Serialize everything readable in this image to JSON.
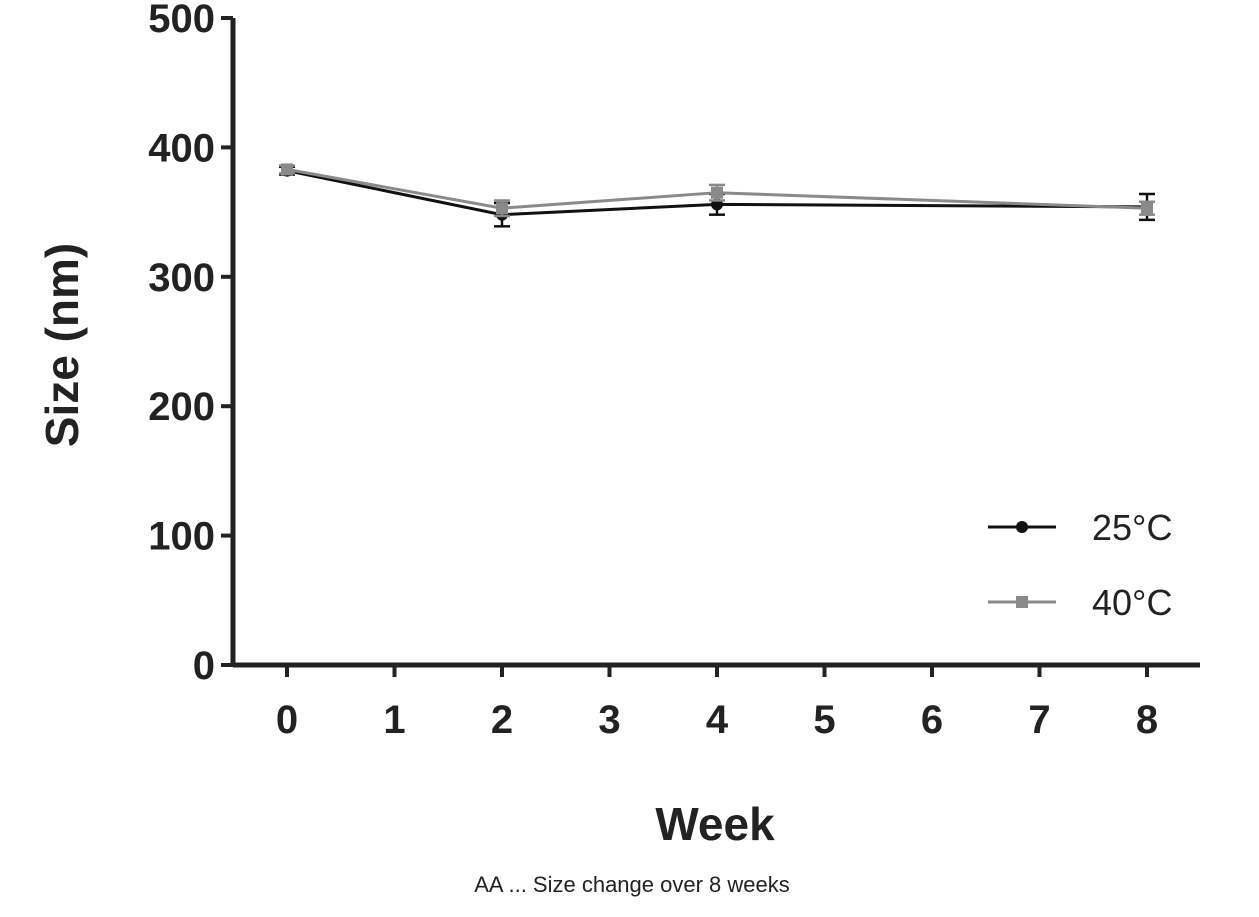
{
  "chart_data": {
    "type": "line",
    "title": "",
    "xlabel": "Week",
    "ylabel": "Size (nm)",
    "xlim": [
      0,
      8
    ],
    "ylim": [
      0,
      500
    ],
    "x_ticks": [
      "0",
      "1",
      "2",
      "3",
      "4",
      "5",
      "6",
      "7",
      "8"
    ],
    "y_ticks": [
      "0",
      "100",
      "200",
      "300",
      "400",
      "500"
    ],
    "grid": false,
    "legend_position": "bottom-right",
    "series": [
      {
        "name": "25°C",
        "color": "#111111",
        "marker": "circle",
        "x": [
          0,
          2,
          4,
          8
        ],
        "y": [
          382,
          348,
          356,
          354
        ],
        "error": [
          3,
          9,
          8,
          10
        ]
      },
      {
        "name": "40°C",
        "color": "#8a8a8a",
        "marker": "square",
        "x": [
          0,
          2,
          4,
          8
        ],
        "y": [
          383,
          353,
          365,
          353
        ],
        "error": [
          3,
          6,
          6,
          5
        ]
      }
    ],
    "caption": "AA ... Size change over 8 weeks"
  }
}
